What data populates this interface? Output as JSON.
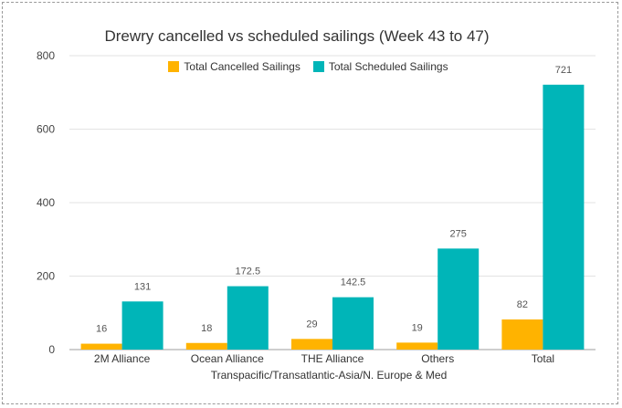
{
  "chart_data": {
    "type": "bar",
    "title": "Drewry cancelled vs scheduled sailings (Week 43 to 47)",
    "xlabel": "Transpacific/Transatlantic-Asia/N. Europe & Med",
    "ylabel": "",
    "categories": [
      "2M Alliance",
      "Ocean Alliance",
      "THE Alliance",
      "Others",
      "Total"
    ],
    "series": [
      {
        "name": "Total Cancelled Sailings",
        "values": [
          16,
          18,
          29,
          19,
          82
        ],
        "color": "#FFB300"
      },
      {
        "name": "Total Scheduled Sailings",
        "values": [
          131,
          172.5,
          142.5,
          275,
          721
        ],
        "color": "#00B5B8"
      }
    ],
    "value_labels": [
      [
        "16",
        "18",
        "29",
        "19",
        "82"
      ],
      [
        "131",
        "172.5",
        "142.5",
        "275",
        "721"
      ]
    ],
    "ylim": [
      0,
      800
    ],
    "yticks": [
      0,
      200,
      400,
      600,
      800
    ],
    "grid": true,
    "legend_position": "top"
  }
}
